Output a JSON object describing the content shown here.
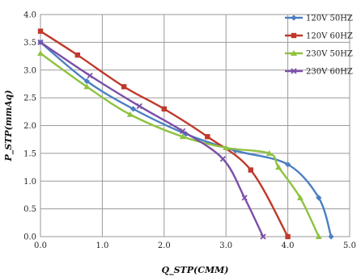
{
  "chart_data": {
    "type": "line",
    "xlabel": "Q_STP(CMM)",
    "ylabel": "P_STP(mmAq)",
    "xlim": [
      0,
      5
    ],
    "ylim": [
      0,
      4
    ],
    "x_ticks": [
      "0.0",
      "1.0",
      "2.0",
      "3.0",
      "4.0",
      "5.0"
    ],
    "y_ticks": [
      "0.0",
      "0.5",
      "1.0",
      "1.5",
      "2.0",
      "2.5",
      "3.0",
      "3.5",
      "4.0"
    ],
    "grid": true,
    "legend_position": "top-right",
    "series": [
      {
        "name": "120V 50HZ",
        "color": "#4a7fc1",
        "marker": "diamond",
        "points": [
          [
            0.0,
            3.5
          ],
          [
            0.75,
            2.8
          ],
          [
            1.5,
            2.3
          ],
          [
            2.35,
            1.85
          ],
          [
            3.15,
            1.55
          ],
          [
            4.0,
            1.3
          ],
          [
            4.5,
            0.7
          ],
          [
            4.7,
            0.0
          ]
        ]
      },
      {
        "name": "120V 60HZ",
        "color": "#c0392b",
        "marker": "square",
        "points": [
          [
            0.0,
            3.7
          ],
          [
            0.6,
            3.27
          ],
          [
            1.35,
            2.7
          ],
          [
            2.0,
            2.3
          ],
          [
            2.7,
            1.8
          ],
          [
            3.4,
            1.2
          ],
          [
            4.0,
            0.0
          ]
        ]
      },
      {
        "name": "230V 50HZ",
        "color": "#8fc240",
        "marker": "triangle",
        "points": [
          [
            0.0,
            3.3
          ],
          [
            0.75,
            2.7
          ],
          [
            1.45,
            2.2
          ],
          [
            2.3,
            1.8
          ],
          [
            3.0,
            1.6
          ],
          [
            3.7,
            1.5
          ],
          [
            3.85,
            1.25
          ],
          [
            4.2,
            0.7
          ],
          [
            4.5,
            0.0
          ]
        ]
      },
      {
        "name": "230V 60HZ",
        "color": "#7b4fa8",
        "marker": "x",
        "points": [
          [
            0.0,
            3.5
          ],
          [
            0.8,
            2.9
          ],
          [
            1.6,
            2.35
          ],
          [
            2.3,
            1.9
          ],
          [
            2.95,
            1.4
          ],
          [
            3.3,
            0.7
          ],
          [
            3.6,
            0.0
          ]
        ]
      }
    ]
  }
}
